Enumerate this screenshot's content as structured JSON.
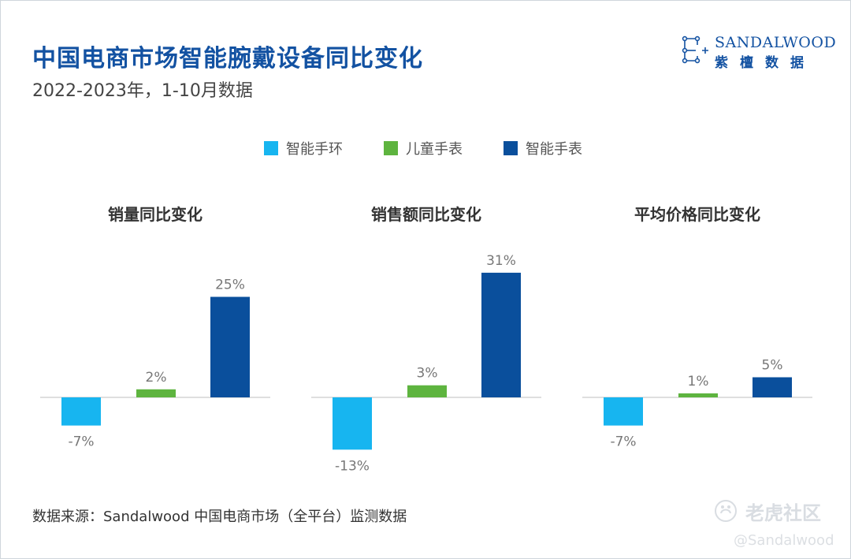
{
  "title": "中国电商市场智能腕戴设备同比变化",
  "subtitle": "2022-2023年，1-10月数据",
  "logo": {
    "en": "SANDALWOOD",
    "cn": "紫檀数据"
  },
  "source": "数据来源：Sandalwood 中国电商市场（全平台）监测数据",
  "watermark": {
    "text": "老虎社区",
    "handle": "@Sandalwood"
  },
  "colors": {
    "title": "#1352a2",
    "bracelet": "#17b5f0",
    "kids": "#5eb43f",
    "watch": "#0a4f9c"
  },
  "chart_data": [
    {
      "type": "bar",
      "title": "销量同比变化",
      "categories": [
        "智能手环",
        "儿童手表",
        "智能手表"
      ],
      "values": [
        -7,
        2,
        25
      ],
      "labels": [
        "-7%",
        "2%",
        "25%"
      ],
      "unit": "%",
      "ylim": [
        -13,
        31
      ],
      "legend": "top-center"
    },
    {
      "type": "bar",
      "title": "销售额同比变化",
      "categories": [
        "智能手环",
        "儿童手表",
        "智能手表"
      ],
      "values": [
        -13,
        3,
        31
      ],
      "labels": [
        "-13%",
        "3%",
        "31%"
      ],
      "unit": "%",
      "ylim": [
        -13,
        31
      ],
      "legend": "top-center"
    },
    {
      "type": "bar",
      "title": "平均价格同比变化",
      "categories": [
        "智能手环",
        "儿童手表",
        "智能手表"
      ],
      "values": [
        -7,
        1,
        5
      ],
      "labels": [
        "-7%",
        "1%",
        "5%"
      ],
      "unit": "%",
      "ylim": [
        -13,
        31
      ],
      "legend": "top-center"
    }
  ]
}
